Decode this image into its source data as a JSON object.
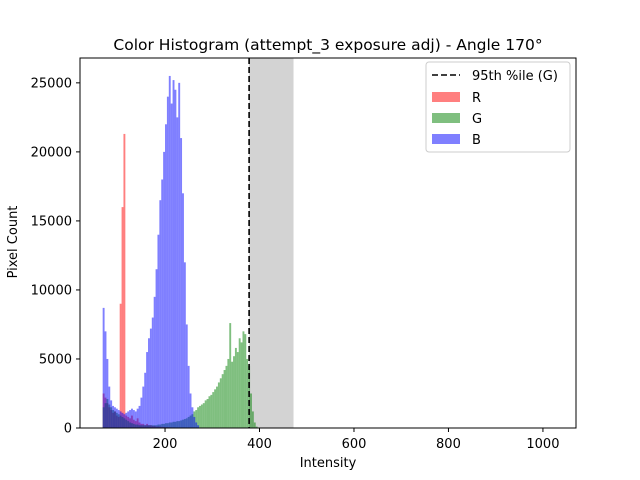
{
  "chart_data": {
    "type": "histogram",
    "title": "Color Histogram (attempt_3 exposure adj) - Angle 170°",
    "xlabel": "Intensity",
    "ylabel": "Pixel Count",
    "xlim": [
      20,
      1070
    ],
    "ylim": [
      0,
      26800
    ],
    "x_ticks": [
      200,
      400,
      600,
      800,
      1000
    ],
    "y_ticks": [
      0,
      5000,
      10000,
      15000,
      20000,
      25000
    ],
    "grid": false,
    "legend_position": "top-right",
    "shaded_region": {
      "x0": 378,
      "x1": 472
    },
    "percentile_line": {
      "label": "95th %ile (G)",
      "x": 378,
      "style": "dashed",
      "color": "#000000"
    },
    "bin_width": 4,
    "series": [
      {
        "name": "R",
        "color": "#ff0000",
        "alpha": 0.5,
        "points": [
          [
            68,
            2500
          ],
          [
            72,
            2200
          ],
          [
            76,
            1800
          ],
          [
            80,
            1500
          ],
          [
            84,
            1300
          ],
          [
            88,
            1100
          ],
          [
            92,
            1200
          ],
          [
            96,
            900
          ],
          [
            100,
            800
          ],
          [
            104,
            9000
          ],
          [
            108,
            16000
          ],
          [
            112,
            21300
          ],
          [
            116,
            900
          ],
          [
            120,
            800
          ],
          [
            124,
            700
          ],
          [
            128,
            900
          ],
          [
            132,
            600
          ],
          [
            136,
            500
          ],
          [
            140,
            700
          ],
          [
            144,
            400
          ],
          [
            148,
            300
          ],
          [
            152,
            300
          ],
          [
            156,
            200
          ],
          [
            160,
            300
          ],
          [
            164,
            200
          ],
          [
            168,
            200
          ],
          [
            172,
            150
          ],
          [
            176,
            150
          ],
          [
            180,
            100
          ],
          [
            184,
            120
          ],
          [
            188,
            100
          ],
          [
            192,
            80
          ],
          [
            196,
            80
          ],
          [
            200,
            60
          ],
          [
            204,
            60
          ],
          [
            208,
            50
          ],
          [
            212,
            40
          ],
          [
            216,
            40
          ],
          [
            220,
            30
          ],
          [
            224,
            30
          ],
          [
            228,
            20
          ],
          [
            232,
            20
          ]
        ]
      },
      {
        "name": "G",
        "color": "#008000",
        "alpha": 0.5,
        "points": [
          [
            68,
            1500
          ],
          [
            72,
            1800
          ],
          [
            76,
            2100
          ],
          [
            80,
            1700
          ],
          [
            84,
            1500
          ],
          [
            88,
            1300
          ],
          [
            92,
            1200
          ],
          [
            96,
            1100
          ],
          [
            100,
            1000
          ],
          [
            104,
            900
          ],
          [
            108,
            800
          ],
          [
            112,
            700
          ],
          [
            116,
            600
          ],
          [
            120,
            500
          ],
          [
            124,
            400
          ],
          [
            128,
            350
          ],
          [
            132,
            300
          ],
          [
            136,
            250
          ],
          [
            140,
            250
          ],
          [
            144,
            200
          ],
          [
            148,
            200
          ],
          [
            152,
            200
          ],
          [
            156,
            200
          ],
          [
            160,
            200
          ],
          [
            164,
            200
          ],
          [
            168,
            200
          ],
          [
            172,
            200
          ],
          [
            176,
            200
          ],
          [
            180,
            200
          ],
          [
            184,
            250
          ],
          [
            188,
            250
          ],
          [
            192,
            300
          ],
          [
            196,
            300
          ],
          [
            200,
            350
          ],
          [
            204,
            350
          ],
          [
            208,
            400
          ],
          [
            212,
            400
          ],
          [
            216,
            450
          ],
          [
            220,
            450
          ],
          [
            224,
            500
          ],
          [
            228,
            500
          ],
          [
            232,
            550
          ],
          [
            236,
            600
          ],
          [
            240,
            650
          ],
          [
            244,
            700
          ],
          [
            248,
            800
          ],
          [
            252,
            900
          ],
          [
            256,
            1000
          ],
          [
            260,
            1200
          ],
          [
            264,
            1300
          ],
          [
            268,
            1500
          ],
          [
            272,
            1600
          ],
          [
            276,
            1700
          ],
          [
            280,
            1800
          ],
          [
            284,
            2000
          ],
          [
            288,
            2100
          ],
          [
            292,
            2300
          ],
          [
            296,
            2400
          ],
          [
            300,
            2600
          ],
          [
            304,
            2800
          ],
          [
            308,
            3000
          ],
          [
            312,
            3300
          ],
          [
            316,
            3600
          ],
          [
            320,
            3900
          ],
          [
            324,
            4200
          ],
          [
            328,
            4500
          ],
          [
            332,
            5000
          ],
          [
            336,
            7600
          ],
          [
            340,
            4800
          ],
          [
            344,
            5200
          ],
          [
            348,
            5800
          ],
          [
            352,
            5500
          ],
          [
            356,
            6500
          ],
          [
            360,
            6200
          ],
          [
            364,
            7000
          ],
          [
            368,
            6800
          ],
          [
            372,
            5000
          ],
          [
            376,
            4500
          ],
          [
            380,
            2500
          ],
          [
            384,
            1200
          ],
          [
            388,
            400
          ],
          [
            392,
            100
          ]
        ]
      },
      {
        "name": "B",
        "color": "#0000ff",
        "alpha": 0.5,
        "points": [
          [
            68,
            8700
          ],
          [
            72,
            7000
          ],
          [
            76,
            5000
          ],
          [
            80,
            3000
          ],
          [
            84,
            2000
          ],
          [
            88,
            1600
          ],
          [
            92,
            1500
          ],
          [
            96,
            1400
          ],
          [
            100,
            1300
          ],
          [
            104,
            1200
          ],
          [
            108,
            1100
          ],
          [
            112,
            1000
          ],
          [
            116,
            1100
          ],
          [
            120,
            1200
          ],
          [
            124,
            1300
          ],
          [
            128,
            1400
          ],
          [
            132,
            1300
          ],
          [
            136,
            1200
          ],
          [
            140,
            1400
          ],
          [
            144,
            1600
          ],
          [
            148,
            2200
          ],
          [
            152,
            3000
          ],
          [
            156,
            4000
          ],
          [
            160,
            5500
          ],
          [
            164,
            6500
          ],
          [
            168,
            7200
          ],
          [
            172,
            8000
          ],
          [
            176,
            9500
          ],
          [
            180,
            11500
          ],
          [
            184,
            14000
          ],
          [
            188,
            16500
          ],
          [
            192,
            18000
          ],
          [
            196,
            20000
          ],
          [
            200,
            22000
          ],
          [
            204,
            24000
          ],
          [
            208,
            25500
          ],
          [
            212,
            23500
          ],
          [
            216,
            25200
          ],
          [
            220,
            24500
          ],
          [
            224,
            22500
          ],
          [
            228,
            25000
          ],
          [
            232,
            21000
          ],
          [
            236,
            17000
          ],
          [
            240,
            12000
          ],
          [
            244,
            7500
          ],
          [
            248,
            4500
          ],
          [
            252,
            2500
          ],
          [
            256,
            1500
          ],
          [
            260,
            800
          ],
          [
            264,
            400
          ],
          [
            268,
            200
          ]
        ]
      }
    ]
  }
}
